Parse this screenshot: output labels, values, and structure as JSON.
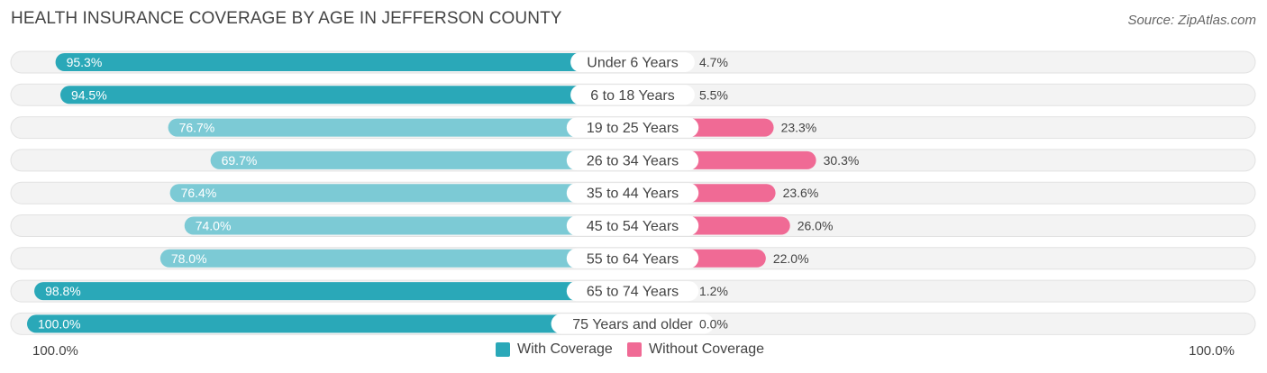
{
  "title": "HEALTH INSURANCE COVERAGE BY AGE IN JEFFERSON COUNTY",
  "source": "Source: ZipAtlas.com",
  "colors": {
    "with_dark": "#2aa8b8",
    "with_light": "#7ccad5",
    "without_dark": "#f06a95",
    "without_light": "#f6a6c0",
    "track": "#efefef"
  },
  "legend": {
    "with_label": "With Coverage",
    "without_label": "Without Coverage"
  },
  "axis": {
    "left_label": "100.0%",
    "right_label": "100.0%"
  },
  "chart_data": {
    "type": "bar",
    "orientation": "horizontal-diverging",
    "title": "HEALTH INSURANCE COVERAGE BY AGE IN JEFFERSON COUNTY",
    "categories": [
      "Under 6 Years",
      "6 to 18 Years",
      "19 to 25 Years",
      "26 to 34 Years",
      "35 to 44 Years",
      "45 to 54 Years",
      "55 to 64 Years",
      "65 to 74 Years",
      "75 Years and older"
    ],
    "series": [
      {
        "name": "With Coverage",
        "values": [
          95.3,
          94.5,
          76.7,
          69.7,
          76.4,
          74.0,
          78.0,
          98.8,
          100.0
        ],
        "labels": [
          "95.3%",
          "94.5%",
          "76.7%",
          "69.7%",
          "76.4%",
          "74.0%",
          "78.0%",
          "98.8%",
          "100.0%"
        ]
      },
      {
        "name": "Without Coverage",
        "values": [
          4.7,
          5.5,
          23.3,
          30.3,
          23.6,
          26.0,
          22.0,
          1.2,
          0.0
        ],
        "labels": [
          "4.7%",
          "5.5%",
          "23.3%",
          "30.3%",
          "23.6%",
          "26.0%",
          "22.0%",
          "1.2%",
          "0.0%"
        ]
      }
    ],
    "xlim": [
      -100,
      100
    ],
    "legend_position": "bottom-center"
  }
}
